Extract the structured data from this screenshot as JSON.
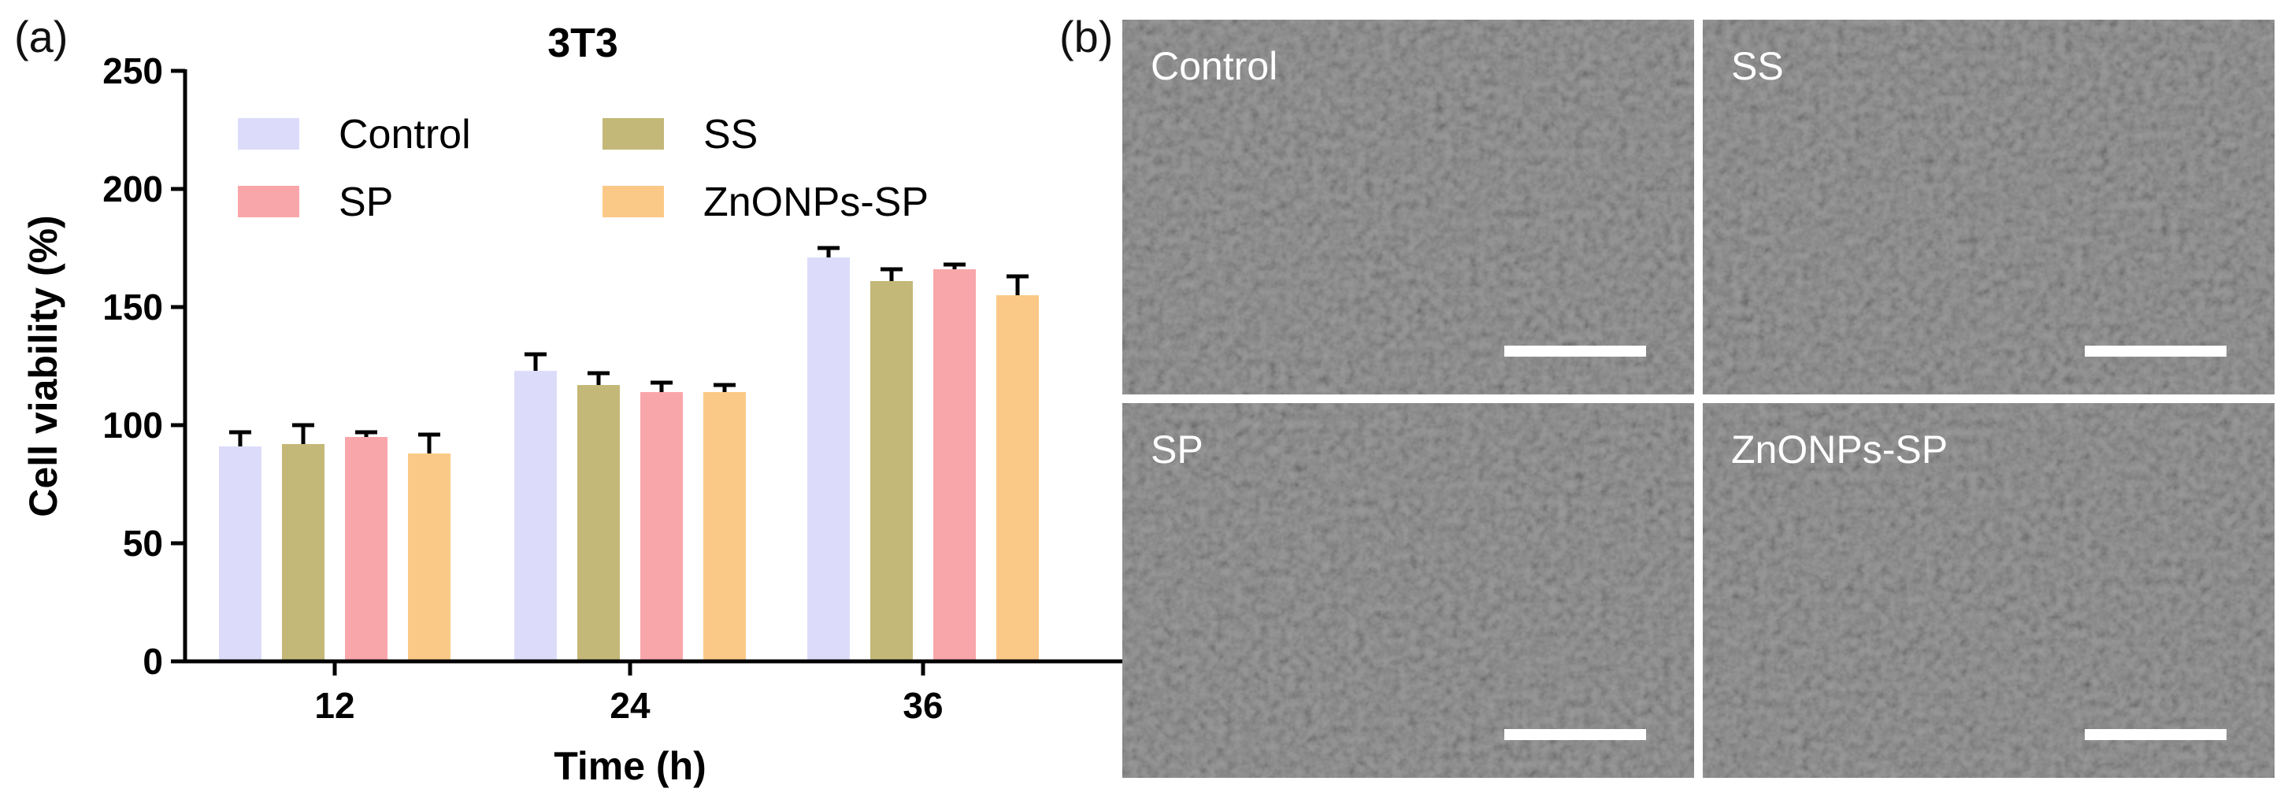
{
  "panel_a_label": "(a)",
  "panel_b_label": "(b)",
  "chart_data": {
    "type": "bar",
    "title": "3T3",
    "xlabel": "Time (h)",
    "ylabel": "Cell viability (%)",
    "categories": [
      "12",
      "24",
      "36"
    ],
    "ylim": [
      0,
      250
    ],
    "yticks": [
      0,
      50,
      100,
      150,
      200,
      250
    ],
    "legend_position": "top-left",
    "series": [
      {
        "name": "Control",
        "color": "#dcdcfa",
        "values": [
          91,
          123,
          171
        ],
        "errors": [
          6,
          7,
          4
        ]
      },
      {
        "name": "SS",
        "color": "#c4b878",
        "values": [
          92,
          117,
          161
        ],
        "errors": [
          8,
          5,
          5
        ]
      },
      {
        "name": "SP",
        "color": "#f9a6ab",
        "values": [
          95,
          114,
          166
        ],
        "errors": [
          2,
          4,
          2
        ]
      },
      {
        "name": "ZnONPs-SP",
        "color": "#fbc987",
        "values": [
          88,
          114,
          155
        ],
        "errors": [
          8,
          3,
          8
        ]
      }
    ]
  },
  "micrographs": [
    {
      "label": "Control"
    },
    {
      "label": "SS"
    },
    {
      "label": "SP"
    },
    {
      "label": "ZnONPs-SP"
    }
  ]
}
